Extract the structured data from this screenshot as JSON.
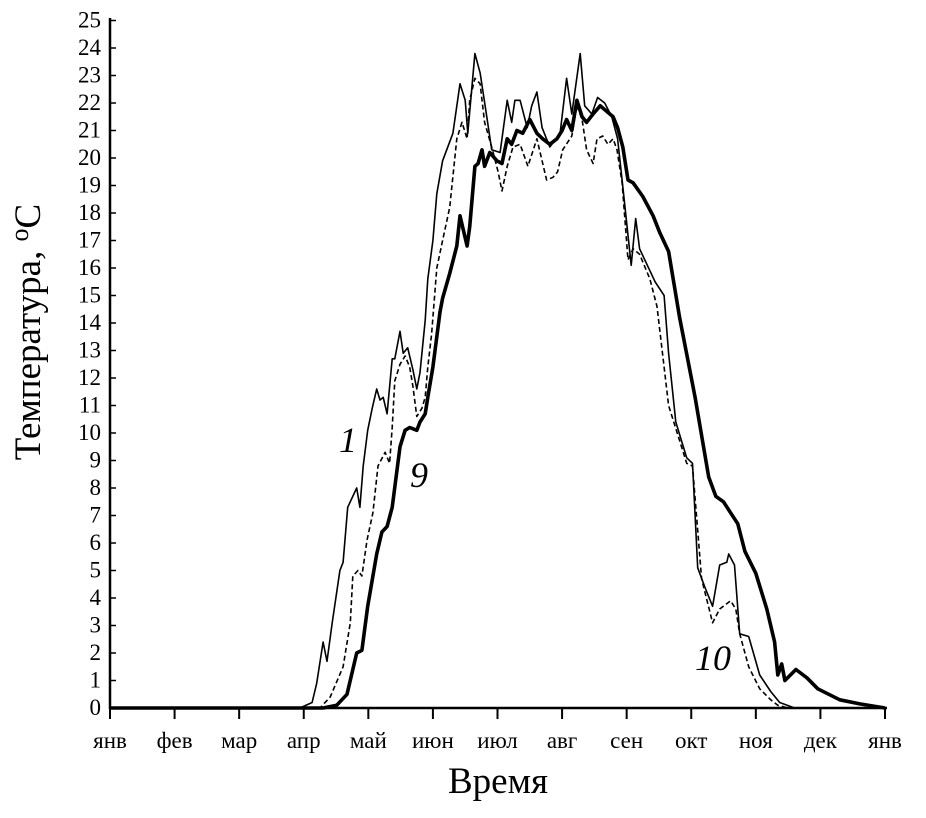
{
  "chart_data": {
    "type": "line",
    "title": "",
    "xlabel": "Время",
    "ylabel": "Температура, ",
    "ylabel_sup": "о",
    "ylabel_unit": "С",
    "xlim": [
      0,
      12
    ],
    "ylim": [
      0,
      25
    ],
    "grid": false,
    "x_unit": "months from January",
    "x_tick_labels": [
      "янв",
      "фев",
      "мар",
      "апр",
      "май",
      "июн",
      "июл",
      "авг",
      "сен",
      "окт",
      "ноя",
      "дек",
      "янв"
    ],
    "y_tick_labels": [
      "0",
      "1",
      "2",
      "3",
      "4",
      "5",
      "6",
      "7",
      "8",
      "9",
      "10",
      "11",
      "12",
      "13",
      "14",
      "15",
      "16",
      "17",
      "18",
      "19",
      "20",
      "21",
      "22",
      "23",
      "24",
      "25"
    ],
    "series": [
      {
        "name": "1",
        "style": "thin-solid",
        "points": [
          [
            0,
            0
          ],
          [
            2.94,
            0
          ],
          [
            3.13,
            0.2
          ],
          [
            3.2,
            0.9
          ],
          [
            3.3,
            2.4
          ],
          [
            3.36,
            1.7
          ],
          [
            3.44,
            3.1
          ],
          [
            3.56,
            5.0
          ],
          [
            3.61,
            5.3
          ],
          [
            3.68,
            7.3
          ],
          [
            3.76,
            7.7
          ],
          [
            3.82,
            8.0
          ],
          [
            3.87,
            7.3
          ],
          [
            3.92,
            8.8
          ],
          [
            3.99,
            10.1
          ],
          [
            4.06,
            10.9
          ],
          [
            4.13,
            11.6
          ],
          [
            4.18,
            11.2
          ],
          [
            4.23,
            11.3
          ],
          [
            4.29,
            10.7
          ],
          [
            4.37,
            12.7
          ],
          [
            4.41,
            12.7
          ],
          [
            4.49,
            13.7
          ],
          [
            4.54,
            12.9
          ],
          [
            4.61,
            13.1
          ],
          [
            4.69,
            12.3
          ],
          [
            4.75,
            11.6
          ],
          [
            4.8,
            12.2
          ],
          [
            4.88,
            14.1
          ],
          [
            4.92,
            15.6
          ],
          [
            5.0,
            17.0
          ],
          [
            5.06,
            18.7
          ],
          [
            5.15,
            19.9
          ],
          [
            5.31,
            20.9
          ],
          [
            5.42,
            22.7
          ],
          [
            5.5,
            22.1
          ],
          [
            5.54,
            20.9
          ],
          [
            5.65,
            23.8
          ],
          [
            5.73,
            23.1
          ],
          [
            5.84,
            21.4
          ],
          [
            5.91,
            20.3
          ],
          [
            6.04,
            20.2
          ],
          [
            6.15,
            22.1
          ],
          [
            6.22,
            21.3
          ],
          [
            6.27,
            22.1
          ],
          [
            6.35,
            22.1
          ],
          [
            6.46,
            21.1
          ],
          [
            6.53,
            21.9
          ],
          [
            6.61,
            22.4
          ],
          [
            6.69,
            21.1
          ],
          [
            6.81,
            20.4
          ],
          [
            6.97,
            20.9
          ],
          [
            7.07,
            22.9
          ],
          [
            7.15,
            21.6
          ],
          [
            7.28,
            23.8
          ],
          [
            7.35,
            21.9
          ],
          [
            7.46,
            21.6
          ],
          [
            7.55,
            22.2
          ],
          [
            7.66,
            22.0
          ],
          [
            7.77,
            21.5
          ],
          [
            7.86,
            20.7
          ],
          [
            7.93,
            19.2
          ],
          [
            8.07,
            16.1
          ],
          [
            8.14,
            17.8
          ],
          [
            8.2,
            16.7
          ],
          [
            8.44,
            15.5
          ],
          [
            8.58,
            15.0
          ],
          [
            8.65,
            12.9
          ],
          [
            8.76,
            10.4
          ],
          [
            8.93,
            9.1
          ],
          [
            9.02,
            8.9
          ],
          [
            9.1,
            5.1
          ],
          [
            9.21,
            4.4
          ],
          [
            9.33,
            3.7
          ],
          [
            9.44,
            5.2
          ],
          [
            9.55,
            5.3
          ],
          [
            9.58,
            5.6
          ],
          [
            9.67,
            5.2
          ],
          [
            9.75,
            2.7
          ],
          [
            9.89,
            2.6
          ],
          [
            10.06,
            1.2
          ],
          [
            10.23,
            0.6
          ],
          [
            10.37,
            0.2
          ],
          [
            10.6,
            0
          ],
          [
            12,
            0
          ]
        ]
      },
      {
        "name": "9",
        "style": "dashed",
        "points": [
          [
            0,
            0
          ],
          [
            3.25,
            0
          ],
          [
            3.41,
            0.4
          ],
          [
            3.61,
            1.5
          ],
          [
            3.72,
            3.1
          ],
          [
            3.76,
            4.8
          ],
          [
            3.84,
            5.0
          ],
          [
            3.9,
            4.8
          ],
          [
            3.98,
            6.1
          ],
          [
            4.07,
            7.1
          ],
          [
            4.15,
            8.8
          ],
          [
            4.26,
            9.3
          ],
          [
            4.33,
            8.9
          ],
          [
            4.37,
            10.2
          ],
          [
            4.41,
            11.9
          ],
          [
            4.49,
            12.5
          ],
          [
            4.57,
            12.8
          ],
          [
            4.64,
            12.4
          ],
          [
            4.69,
            11.7
          ],
          [
            4.75,
            10.6
          ],
          [
            4.83,
            10.9
          ],
          [
            4.88,
            11.3
          ],
          [
            4.92,
            12.4
          ],
          [
            4.98,
            13.6
          ],
          [
            5.06,
            16.0
          ],
          [
            5.15,
            17.0
          ],
          [
            5.26,
            18.2
          ],
          [
            5.37,
            20.7
          ],
          [
            5.45,
            21.3
          ],
          [
            5.53,
            20.7
          ],
          [
            5.57,
            22.1
          ],
          [
            5.65,
            22.9
          ],
          [
            5.73,
            22.7
          ],
          [
            5.8,
            21.3
          ],
          [
            5.91,
            20.4
          ],
          [
            6.01,
            19.5
          ],
          [
            6.07,
            18.8
          ],
          [
            6.15,
            19.7
          ],
          [
            6.24,
            20.4
          ],
          [
            6.35,
            20.5
          ],
          [
            6.47,
            19.7
          ],
          [
            6.61,
            20.7
          ],
          [
            6.76,
            19.2
          ],
          [
            6.86,
            19.3
          ],
          [
            6.93,
            19.5
          ],
          [
            7.01,
            20.3
          ],
          [
            7.15,
            20.8
          ],
          [
            7.23,
            21.9
          ],
          [
            7.31,
            21.4
          ],
          [
            7.38,
            20.3
          ],
          [
            7.48,
            19.8
          ],
          [
            7.54,
            20.7
          ],
          [
            7.63,
            20.8
          ],
          [
            7.71,
            20.5
          ],
          [
            7.79,
            20.7
          ],
          [
            7.85,
            20.3
          ],
          [
            7.93,
            19.1
          ],
          [
            8.02,
            16.3
          ],
          [
            8.1,
            16.7
          ],
          [
            8.2,
            16.5
          ],
          [
            8.36,
            15.6
          ],
          [
            8.47,
            14.6
          ],
          [
            8.65,
            11.0
          ],
          [
            8.93,
            8.9
          ],
          [
            9.02,
            8.8
          ],
          [
            9.16,
            4.7
          ],
          [
            9.33,
            3.1
          ],
          [
            9.44,
            3.6
          ],
          [
            9.61,
            3.9
          ],
          [
            9.69,
            3.6
          ],
          [
            9.75,
            2.7
          ],
          [
            9.89,
            1.5
          ],
          [
            10.06,
            0.7
          ],
          [
            10.23,
            0.3
          ],
          [
            10.34,
            0.1
          ],
          [
            10.5,
            0
          ],
          [
            12,
            0
          ]
        ]
      },
      {
        "name": "10",
        "style": "thick-solid",
        "points": [
          [
            0,
            0
          ],
          [
            3.3,
            0
          ],
          [
            3.51,
            0.1
          ],
          [
            3.67,
            0.5
          ],
          [
            3.82,
            2.0
          ],
          [
            3.9,
            2.1
          ],
          [
            3.99,
            3.7
          ],
          [
            4.13,
            5.6
          ],
          [
            4.21,
            6.4
          ],
          [
            4.29,
            6.6
          ],
          [
            4.37,
            7.3
          ],
          [
            4.49,
            9.5
          ],
          [
            4.57,
            10.1
          ],
          [
            4.64,
            10.2
          ],
          [
            4.75,
            10.1
          ],
          [
            4.8,
            10.4
          ],
          [
            4.88,
            10.7
          ],
          [
            4.92,
            11.3
          ],
          [
            5.0,
            12.4
          ],
          [
            5.06,
            13.5
          ],
          [
            5.11,
            14.4
          ],
          [
            5.15,
            14.9
          ],
          [
            5.26,
            15.8
          ],
          [
            5.37,
            16.8
          ],
          [
            5.42,
            17.9
          ],
          [
            5.53,
            16.8
          ],
          [
            5.57,
            17.5
          ],
          [
            5.65,
            19.7
          ],
          [
            5.7,
            19.8
          ],
          [
            5.76,
            20.3
          ],
          [
            5.8,
            19.7
          ],
          [
            5.88,
            20.2
          ],
          [
            5.99,
            19.9
          ],
          [
            6.07,
            19.8
          ],
          [
            6.15,
            20.7
          ],
          [
            6.22,
            20.5
          ],
          [
            6.3,
            21.0
          ],
          [
            6.39,
            20.9
          ],
          [
            6.5,
            21.4
          ],
          [
            6.61,
            20.9
          ],
          [
            6.7,
            20.7
          ],
          [
            6.81,
            20.5
          ],
          [
            6.92,
            20.7
          ],
          [
            7.0,
            21.0
          ],
          [
            7.07,
            21.4
          ],
          [
            7.15,
            21.0
          ],
          [
            7.23,
            22.1
          ],
          [
            7.31,
            21.5
          ],
          [
            7.38,
            21.3
          ],
          [
            7.48,
            21.6
          ],
          [
            7.59,
            21.9
          ],
          [
            7.69,
            21.7
          ],
          [
            7.79,
            21.5
          ],
          [
            7.86,
            21.1
          ],
          [
            7.94,
            20.4
          ],
          [
            8.02,
            19.2
          ],
          [
            8.1,
            19.1
          ],
          [
            8.25,
            18.6
          ],
          [
            8.41,
            17.9
          ],
          [
            8.51,
            17.3
          ],
          [
            8.65,
            16.6
          ],
          [
            8.82,
            14.2
          ],
          [
            9.06,
            11.3
          ],
          [
            9.27,
            8.4
          ],
          [
            9.38,
            7.7
          ],
          [
            9.5,
            7.5
          ],
          [
            9.61,
            7.1
          ],
          [
            9.72,
            6.7
          ],
          [
            9.83,
            5.7
          ],
          [
            10.0,
            4.9
          ],
          [
            10.17,
            3.6
          ],
          [
            10.29,
            2.4
          ],
          [
            10.34,
            1.2
          ],
          [
            10.4,
            1.6
          ],
          [
            10.45,
            1.0
          ],
          [
            10.62,
            1.4
          ],
          [
            10.79,
            1.1
          ],
          [
            10.96,
            0.7
          ],
          [
            11.13,
            0.5
          ],
          [
            11.3,
            0.3
          ],
          [
            11.61,
            0.15
          ],
          [
            12,
            0
          ]
        ]
      }
    ],
    "annotations": [
      "1",
      "9",
      "10"
    ]
  }
}
